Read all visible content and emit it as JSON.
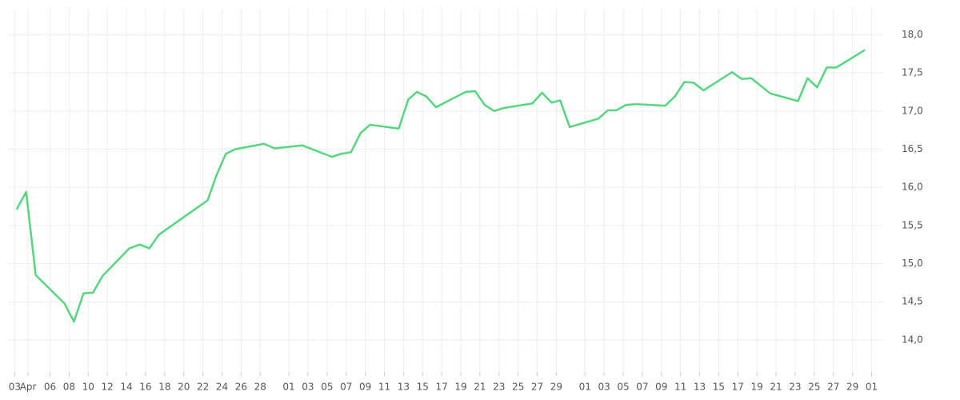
{
  "chart_data": {
    "type": "line",
    "x": [
      2.5,
      3.5,
      4.5,
      7.5,
      8.5,
      9.5,
      10.5,
      11.5,
      14.3,
      15.4,
      16.4,
      17.4,
      22.5,
      23.4,
      24.4,
      25.4,
      28.4,
      29.5,
      32.4,
      35.5,
      36.5,
      37.5,
      38.5,
      39.5,
      42.5,
      43.5,
      44.4,
      45.4,
      46.4,
      49.5,
      50.5,
      51.5,
      52.5,
      53.5,
      56.5,
      57.5,
      58.5,
      59.4,
      60.4,
      63.4,
      64.4,
      65.3,
      66.3,
      67.4,
      70.4,
      71.4,
      72.4,
      73.4,
      74.4,
      77.4,
      78.4,
      79.4,
      80.4,
      81.4,
      84.3,
      85.3,
      86.3,
      87.3,
      88.3,
      91.3
    ],
    "series": [
      {
        "color": "#55d67f",
        "values": [
          15.71,
          15.94,
          14.85,
          14.48,
          14.24,
          14.61,
          14.62,
          14.84,
          15.2,
          15.25,
          15.2,
          15.38,
          15.83,
          16.15,
          16.44,
          16.5,
          16.57,
          16.51,
          16.55,
          16.4,
          16.44,
          16.46,
          16.71,
          16.82,
          16.77,
          17.15,
          17.25,
          17.19,
          17.05,
          17.25,
          17.26,
          17.08,
          17.0,
          17.04,
          17.1,
          17.24,
          17.11,
          17.14,
          16.79,
          16.9,
          17.01,
          17.01,
          17.08,
          17.09,
          17.07,
          17.19,
          17.38,
          17.37,
          17.27,
          17.51,
          17.42,
          17.43,
          17.33,
          17.23,
          17.13,
          17.43,
          17.31,
          17.57,
          17.57,
          17.8
        ]
      }
    ],
    "xlim": [
      1.6,
      93.3
    ],
    "xticks": [
      {
        "value": 2.3,
        "label": "03"
      },
      {
        "value": 3.7,
        "label": "Apr"
      },
      {
        "value": 6,
        "label": "06"
      },
      {
        "value": 8,
        "label": "08"
      },
      10,
      12,
      14,
      16,
      18,
      20,
      22,
      24,
      26,
      28,
      {
        "value": 31,
        "label": "01"
      },
      {
        "value": 33,
        "label": "03"
      },
      {
        "value": 35,
        "label": "05"
      },
      {
        "value": 37,
        "label": "07"
      },
      {
        "value": 39,
        "label": "09"
      },
      {
        "value": 41,
        "label": "11"
      },
      {
        "value": 43,
        "label": "13"
      },
      {
        "value": 45,
        "label": "15"
      },
      {
        "value": 47,
        "label": "17"
      },
      {
        "value": 49,
        "label": "19"
      },
      {
        "value": 51,
        "label": "21"
      },
      {
        "value": 53,
        "label": "23"
      },
      {
        "value": 55,
        "label": "25"
      },
      {
        "value": 57,
        "label": "27"
      },
      {
        "value": 59,
        "label": "29"
      },
      {
        "value": 62,
        "label": "01"
      },
      {
        "value": 64,
        "label": "03"
      },
      {
        "value": 66,
        "label": "05"
      },
      {
        "value": 68,
        "label": "07"
      },
      {
        "value": 70,
        "label": "09"
      },
      {
        "value": 72,
        "label": "11"
      },
      {
        "value": 74,
        "label": "13"
      },
      {
        "value": 76,
        "label": "15"
      },
      {
        "value": 78,
        "label": "17"
      },
      {
        "value": 80,
        "label": "19"
      },
      {
        "value": 82,
        "label": "21"
      },
      {
        "value": 84,
        "label": "23"
      },
      {
        "value": 86,
        "label": "25"
      },
      {
        "value": 88,
        "label": "27"
      },
      {
        "value": 90,
        "label": "29"
      },
      {
        "value": 92,
        "label": "01"
      }
    ],
    "ylim": [
      13.58,
      18.35
    ],
    "yticks": [
      {
        "value": 14,
        "label": "14,0"
      },
      {
        "value": 14.5,
        "label": "14,5"
      },
      {
        "value": 15,
        "label": "15,0"
      },
      {
        "value": 15.5,
        "label": "15,5"
      },
      {
        "value": 16,
        "label": "16,0"
      },
      {
        "value": 16.5,
        "label": "16,5"
      },
      {
        "value": 17,
        "label": "17,0"
      },
      {
        "value": 17.5,
        "label": "17,5"
      },
      {
        "value": 18,
        "label": "18,0"
      }
    ],
    "grid": true
  }
}
